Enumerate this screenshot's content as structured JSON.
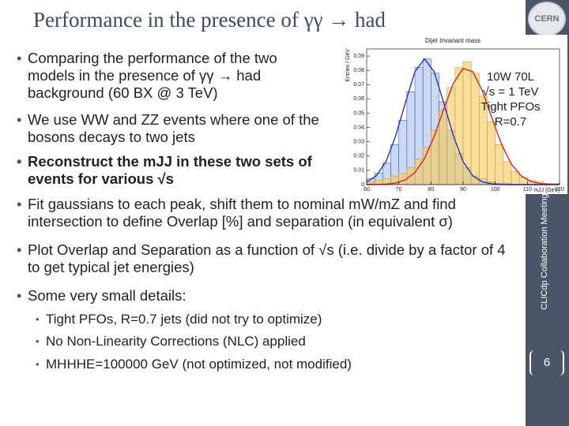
{
  "slide": {
    "title": "Performance in the presence of γγ → had",
    "bullets": [
      "Comparing the performance of the two models in the presence of γγ → had background (60 BX @ 3 TeV)",
      "We use WW and ZZ events where one of the bosons decays to two jets",
      "Reconstruct the mJJ in these two sets of events for various √s",
      "Fit gaussians to each peak, shift them to nominal mW/mZ and find intersection to define Overlap [%] and separation (in equivalent σ)",
      "Plot Overlap and Separation as a function of √s (i.e. divide by a factor of 4 to get typical jet energies)",
      "Some very small details:"
    ],
    "sub_bullets": [
      "Tight PFOs, R=0.7 jets (did not try to optimize)",
      "No Non-Linearity Corrections (NLC) applied",
      "MHHHE=100000 GeV (not optimized, not modified)"
    ],
    "sidebar": "CLICdp Collaboration Meeting",
    "logo": "CERN",
    "page_number": "6"
  },
  "chart_data": {
    "type": "histogram",
    "title": "Dijet Invariant mass",
    "annotations": [
      "10W 70L",
      "√s = 1 TeV",
      "Tight PFOs",
      "R=0.7"
    ],
    "xlabel": "mJJ [GeV]",
    "ylabel": "Entries / GeV",
    "bins": [
      60,
      62.5,
      65,
      67.5,
      70,
      72.5,
      75,
      77.5,
      80,
      82.5,
      85,
      87.5,
      90,
      92.5,
      95,
      97.5,
      100,
      102.5,
      105,
      107.5,
      110,
      112.5,
      115,
      117.5,
      120
    ],
    "series": [
      {
        "color": "#3b5fd0",
        "fill": "#a9c0ea",
        "values": [
          0.004,
          0.008,
          0.015,
          0.028,
          0.045,
          0.065,
          0.082,
          0.088,
          0.078,
          0.058,
          0.038,
          0.022,
          0.012,
          0.006,
          0.004,
          0.002,
          0.001,
          0.001,
          0,
          0,
          0,
          0,
          0,
          0
        ]
      },
      {
        "color": "#d89a20",
        "fill": "#f3c95a",
        "values": [
          0.002,
          0.003,
          0.004,
          0.006,
          0.008,
          0.012,
          0.018,
          0.026,
          0.038,
          0.052,
          0.068,
          0.082,
          0.086,
          0.078,
          0.062,
          0.044,
          0.028,
          0.016,
          0.009,
          0.005,
          0.003,
          0.002,
          0.001,
          0.001
        ]
      }
    ],
    "fits": {
      "x": [
        60,
        63,
        66,
        69,
        72,
        75,
        78,
        81,
        84,
        87,
        90,
        93,
        96,
        99,
        102,
        105,
        108,
        111,
        114,
        117,
        120
      ],
      "series": [
        {
          "color": "#2233cc",
          "values": [
            0.0019,
            0.0062,
            0.016,
            0.034,
            0.057,
            0.079,
            0.088,
            0.079,
            0.057,
            0.034,
            0.016,
            0.0062,
            0.0019,
            0.0005,
            0.0001,
            0,
            0,
            0,
            0,
            0,
            0
          ]
        },
        {
          "color": "#dd2222",
          "values": [
            0,
            0.0001,
            0.0003,
            0.0011,
            0.0033,
            0.0084,
            0.0183,
            0.0337,
            0.053,
            0.0711,
            0.0813,
            0.0791,
            0.0657,
            0.0464,
            0.028,
            0.0144,
            0.0063,
            0.0023,
            0.0007,
            0.0002,
            0.0001
          ]
        }
      ]
    },
    "xlim": [
      60,
      120
    ],
    "ylim": [
      0,
      0.095
    ],
    "xticks": [
      60,
      70,
      80,
      90,
      100,
      110,
      120
    ],
    "yticks": [
      0,
      0.01,
      0.02,
      0.03,
      0.04,
      0.05,
      0.06,
      0.07,
      0.08,
      0.09
    ]
  }
}
